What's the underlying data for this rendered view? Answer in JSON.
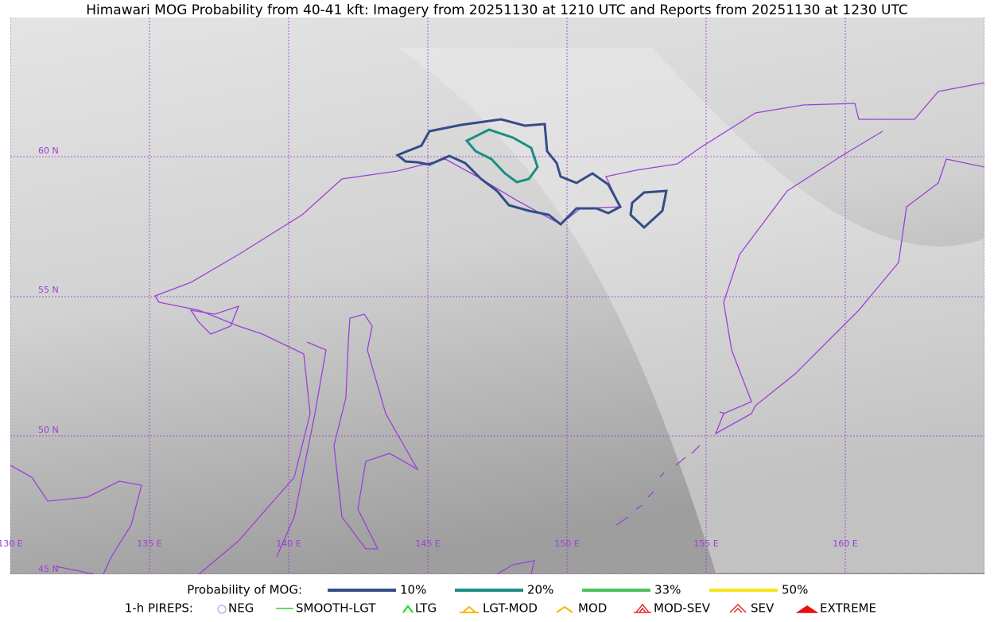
{
  "title": "Himawari MOG Probability from 40-41 kft: Imagery from 20251130 at 1210 UTC and Reports from 20251130 at 1230 UTC",
  "map": {
    "lat_labels": [
      "60 N",
      "55 N",
      "50 N",
      "45 N"
    ],
    "lon_labels": [
      "130 E",
      "135 E",
      "140 E",
      "145 E",
      "150 E",
      "155 E",
      "160 E"
    ]
  },
  "probability_legend": {
    "title": "Probability of MOG:",
    "items": [
      {
        "label": "10%",
        "color": "#344d87"
      },
      {
        "label": "20%",
        "color": "#1b8e86"
      },
      {
        "label": "33%",
        "color": "#4bc35a"
      },
      {
        "label": "50%",
        "color": "#f7e51b"
      }
    ]
  },
  "pirep_legend": {
    "title": "1-h PIREPS:",
    "items": [
      {
        "label": "NEG",
        "color": "#b8b8f0"
      },
      {
        "label": "SMOOTH-LGT",
        "color": "#33cc33"
      },
      {
        "label": "LTG",
        "color": "#11dd11"
      },
      {
        "label": "LGT-MOD",
        "color": "#f5b800"
      },
      {
        "label": "MOD",
        "color": "#f5b800"
      },
      {
        "label": "MOD-SEV",
        "color": "#e83030"
      },
      {
        "label": "SEV",
        "color": "#e83030"
      },
      {
        "label": "EXTREME",
        "color": "#e81010"
      }
    ]
  }
}
